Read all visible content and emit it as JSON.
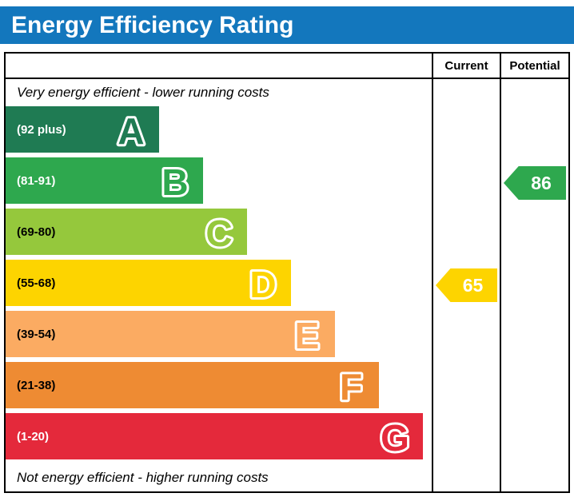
{
  "title_bar": {
    "title": "Energy Efficiency Rating",
    "background_color": "#1377bd",
    "text_color": "#ffffff"
  },
  "chart_data": {
    "type": "bar",
    "title": "Energy Efficiency Rating",
    "top_note": "Very energy efficient - lower running costs",
    "bottom_note": "Not energy efficient - higher running costs",
    "column_headers": {
      "current": "Current",
      "potential": "Potential"
    },
    "bands": [
      {
        "letter": "A",
        "range_label": "(92 plus)",
        "min": 92,
        "max": 100,
        "color": "#1f7b53",
        "label_color": "#ffffff"
      },
      {
        "letter": "B",
        "range_label": "(81-91)",
        "min": 81,
        "max": 91,
        "color": "#2ea84e",
        "label_color": "#ffffff"
      },
      {
        "letter": "C",
        "range_label": "(69-80)",
        "min": 69,
        "max": 80,
        "color": "#95c83c",
        "label_color": "#000000"
      },
      {
        "letter": "D",
        "range_label": "(55-68)",
        "min": 55,
        "max": 68,
        "color": "#fdd400",
        "label_color": "#000000"
      },
      {
        "letter": "E",
        "range_label": "(39-54)",
        "min": 39,
        "max": 54,
        "color": "#fbab62",
        "label_color": "#000000"
      },
      {
        "letter": "F",
        "range_label": "(21-38)",
        "min": 21,
        "max": 38,
        "color": "#ee8b33",
        "label_color": "#000000"
      },
      {
        "letter": "G",
        "range_label": "(1-20)",
        "min": 1,
        "max": 20,
        "color": "#e4293b",
        "label_color": "#ffffff"
      }
    ],
    "current": {
      "value": 65,
      "band": "D",
      "color": "#fdd400"
    },
    "potential": {
      "value": 86,
      "band": "B",
      "color": "#2ea84e"
    }
  }
}
